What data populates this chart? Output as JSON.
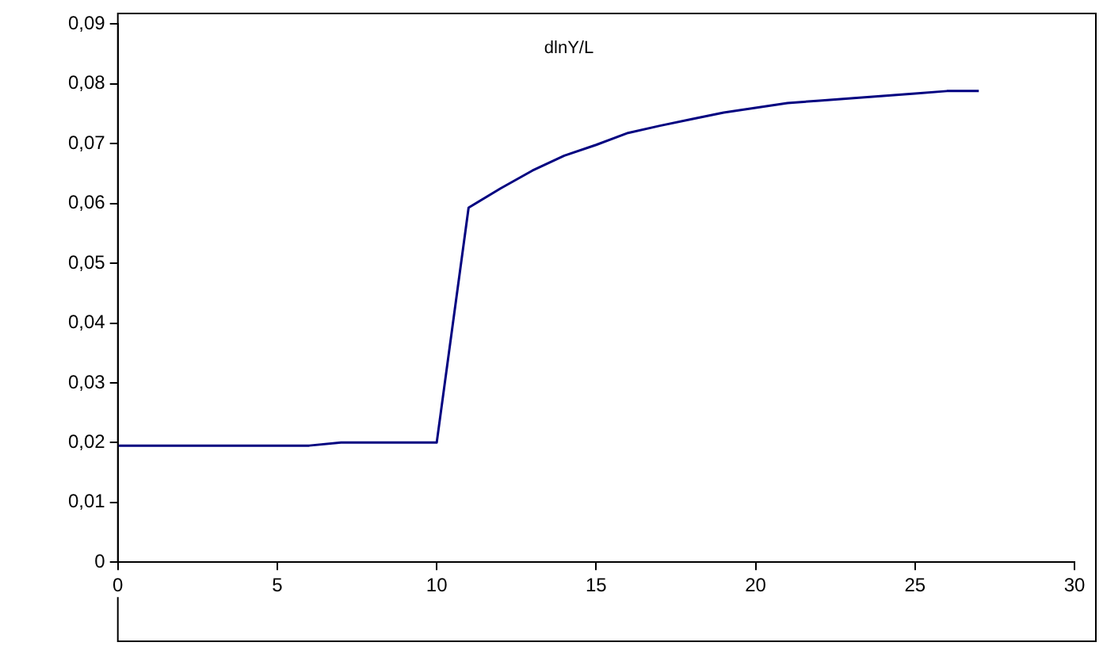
{
  "chart_data": {
    "type": "line",
    "title": "dlnY/L",
    "x": [
      0,
      1,
      2,
      3,
      4,
      5,
      6,
      7,
      8,
      9,
      10,
      11,
      12,
      13,
      14,
      15,
      16,
      17,
      18,
      19,
      20,
      21,
      22,
      23,
      24,
      25,
      26,
      27
    ],
    "series": [
      {
        "color": "#000080",
        "values": [
          0.0195,
          0.0195,
          0.0195,
          0.0195,
          0.0195,
          0.0195,
          0.0195,
          0.02,
          0.02,
          0.02,
          0.02,
          0.0593,
          0.0625,
          0.0655,
          0.068,
          0.0698,
          0.0718,
          0.073,
          0.0741,
          0.0752,
          0.076,
          0.0768,
          0.0772,
          0.0776,
          0.078,
          0.0784,
          0.0788,
          0.0788
        ]
      }
    ],
    "xlim": [
      0,
      30
    ],
    "xticks": [
      0,
      5,
      10,
      15,
      20,
      25,
      30
    ],
    "ylim": [
      0,
      0.09
    ],
    "yticks": [
      {
        "value": 0,
        "label": "0"
      },
      {
        "value": 0.01,
        "label": "0,01"
      },
      {
        "value": 0.02,
        "label": "0,02"
      },
      {
        "value": 0.03,
        "label": "0,03"
      },
      {
        "value": 0.04,
        "label": "0,04"
      },
      {
        "value": 0.05,
        "label": "0,05"
      },
      {
        "value": 0.06,
        "label": "0,06"
      },
      {
        "value": 0.07,
        "label": "0,07"
      },
      {
        "value": 0.08,
        "label": "0,08"
      },
      {
        "value": 0.09,
        "label": "0,09"
      }
    ],
    "grid": false,
    "legend": false,
    "marker": "none",
    "line_style": "solid"
  }
}
